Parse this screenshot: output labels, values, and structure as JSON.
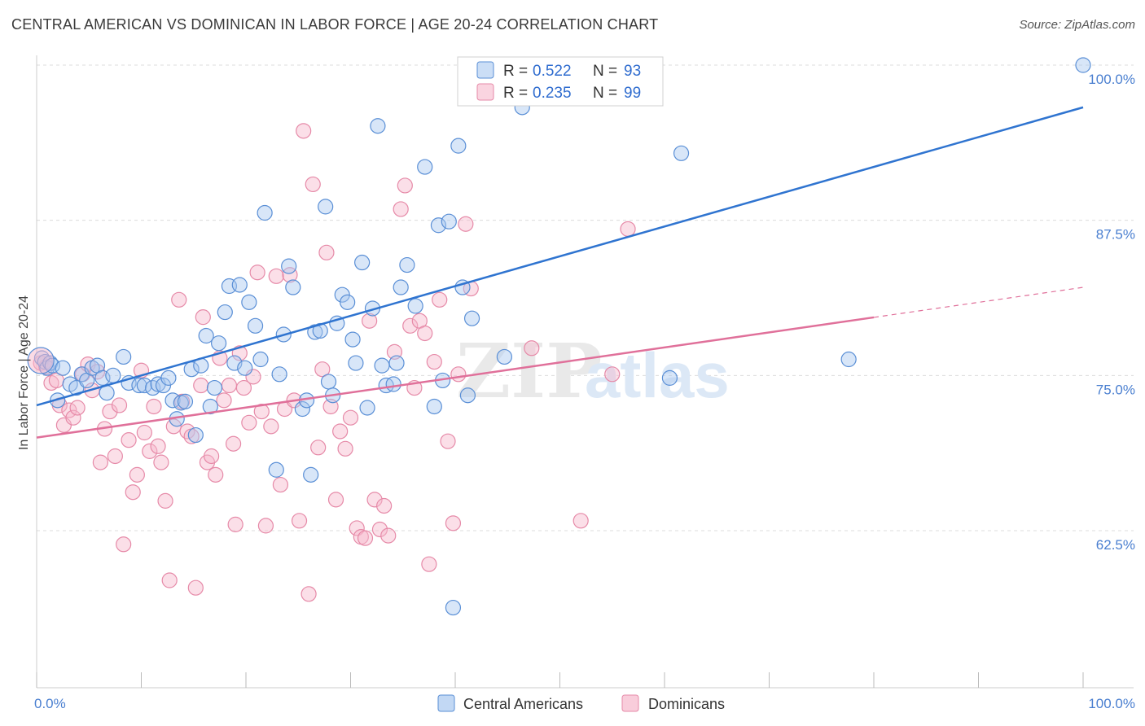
{
  "title": "CENTRAL AMERICAN VS DOMINICAN IN LABOR FORCE | AGE 20-24 CORRELATION CHART",
  "source": "Source: ZipAtlas.com",
  "watermark": {
    "zip": "ZIP",
    "atlas": "atlas"
  },
  "colors": {
    "blue_fill": "#a8c8f0",
    "blue_stroke": "#5a8fd6",
    "blue_line": "#2f74d0",
    "pink_fill": "#f7b8cc",
    "pink_stroke": "#e68aa8",
    "pink_line": "#e0709a",
    "grid": "#dcdcdc",
    "tick_text": "#4a7fd0"
  },
  "legend": {
    "rows": [
      {
        "r_label": "R = ",
        "r_value": "0.522",
        "n_label": "N = ",
        "n_value": "93"
      },
      {
        "r_label": "R = ",
        "r_value": "0.235",
        "n_label": "N = ",
        "n_value": "99"
      }
    ]
  },
  "chart_data": {
    "type": "scatter",
    "title": "CENTRAL AMERICAN VS DOMINICAN IN LABOR FORCE | AGE 20-24 CORRELATION CHART",
    "xlabel": "",
    "ylabel": "In Labor Force | Age 20-24",
    "xlim": [
      0,
      100
    ],
    "ylim": [
      50,
      101
    ],
    "x_tick_labels": [
      "0.0%",
      "100.0%"
    ],
    "y_ticks": [
      62.5,
      75.0,
      87.5,
      100.0
    ],
    "y_tick_labels": [
      "62.5%",
      "75.0%",
      "87.5%",
      "100.0%"
    ],
    "grid": true,
    "legend_position": "top-center",
    "series": [
      {
        "name": "Central Americans",
        "color": "#5a8fd6",
        "trend": {
          "x": [
            0,
            100
          ],
          "y": [
            72.6,
            96.6
          ],
          "dashed_from": null
        },
        "points": [
          [
            0.5,
            76.4
          ],
          [
            0.8,
            76.1
          ],
          [
            1.0,
            75.6
          ],
          [
            1.3,
            76.0
          ],
          [
            1.5,
            75.8
          ],
          [
            2.0,
            73.0
          ],
          [
            2.5,
            75.6
          ],
          [
            3.2,
            74.3
          ],
          [
            3.8,
            74.0
          ],
          [
            4.3,
            75.1
          ],
          [
            4.8,
            74.6
          ],
          [
            5.3,
            75.6
          ],
          [
            5.8,
            75.8
          ],
          [
            6.3,
            74.8
          ],
          [
            6.7,
            73.6
          ],
          [
            7.3,
            75.0
          ],
          [
            8.3,
            76.5
          ],
          [
            8.8,
            74.4
          ],
          [
            9.8,
            74.2
          ],
          [
            10.3,
            74.2
          ],
          [
            11.1,
            74.0
          ],
          [
            11.6,
            74.3
          ],
          [
            12.1,
            74.2
          ],
          [
            12.6,
            74.8
          ],
          [
            13.0,
            73.0
          ],
          [
            13.4,
            71.5
          ],
          [
            13.8,
            72.8
          ],
          [
            14.2,
            72.9
          ],
          [
            14.8,
            75.5
          ],
          [
            15.2,
            70.2
          ],
          [
            15.7,
            75.8
          ],
          [
            16.2,
            78.2
          ],
          [
            16.6,
            72.5
          ],
          [
            17.0,
            74.0
          ],
          [
            17.4,
            77.6
          ],
          [
            18.0,
            80.1
          ],
          [
            18.4,
            82.2
          ],
          [
            18.9,
            76.0
          ],
          [
            19.4,
            82.3
          ],
          [
            19.9,
            75.6
          ],
          [
            20.3,
            80.9
          ],
          [
            20.9,
            79.0
          ],
          [
            21.4,
            76.3
          ],
          [
            21.8,
            88.1
          ],
          [
            22.9,
            67.4
          ],
          [
            23.2,
            75.1
          ],
          [
            23.6,
            78.3
          ],
          [
            24.1,
            83.8
          ],
          [
            24.5,
            82.1
          ],
          [
            25.4,
            72.3
          ],
          [
            25.8,
            73.0
          ],
          [
            26.2,
            67.0
          ],
          [
            26.6,
            78.5
          ],
          [
            27.1,
            78.6
          ],
          [
            27.6,
            88.6
          ],
          [
            27.9,
            74.5
          ],
          [
            28.3,
            73.4
          ],
          [
            28.7,
            79.2
          ],
          [
            29.2,
            81.5
          ],
          [
            29.7,
            80.9
          ],
          [
            30.2,
            77.9
          ],
          [
            30.5,
            76.0
          ],
          [
            31.1,
            84.1
          ],
          [
            31.6,
            72.4
          ],
          [
            32.1,
            80.4
          ],
          [
            32.6,
            95.1
          ],
          [
            33.0,
            75.8
          ],
          [
            33.4,
            74.2
          ],
          [
            34.1,
            74.3
          ],
          [
            34.4,
            76.0
          ],
          [
            34.8,
            82.1
          ],
          [
            35.4,
            83.9
          ],
          [
            36.2,
            80.6
          ],
          [
            37.1,
            91.8
          ],
          [
            38.0,
            72.5
          ],
          [
            38.4,
            87.1
          ],
          [
            38.8,
            74.6
          ],
          [
            39.4,
            87.4
          ],
          [
            39.8,
            56.3
          ],
          [
            40.3,
            93.5
          ],
          [
            40.7,
            82.1
          ],
          [
            41.2,
            73.4
          ],
          [
            41.6,
            79.6
          ],
          [
            42.0,
            97.6
          ],
          [
            43.5,
            100.0
          ],
          [
            44.7,
            76.5
          ],
          [
            46.4,
            96.6
          ],
          [
            56.8,
            100.0
          ],
          [
            57.3,
            100.0
          ],
          [
            60.5,
            74.8
          ],
          [
            61.6,
            92.9
          ],
          [
            77.6,
            76.3
          ],
          [
            100.0,
            100.0
          ]
        ]
      },
      {
        "name": "Dominicans",
        "color": "#e68aa8",
        "trend": {
          "x": [
            0,
            100
          ],
          "y": [
            70.0,
            82.1
          ],
          "dashed_from": 80
        },
        "points": [
          [
            0.4,
            76.0
          ],
          [
            0.9,
            75.7
          ],
          [
            1.4,
            74.4
          ],
          [
            1.9,
            74.6
          ],
          [
            2.2,
            72.6
          ],
          [
            2.6,
            71.0
          ],
          [
            3.1,
            72.2
          ],
          [
            3.5,
            71.6
          ],
          [
            3.9,
            72.4
          ],
          [
            4.4,
            75.1
          ],
          [
            4.9,
            75.9
          ],
          [
            5.3,
            73.8
          ],
          [
            5.8,
            75.3
          ],
          [
            6.1,
            68.0
          ],
          [
            6.5,
            70.7
          ],
          [
            7.0,
            72.1
          ],
          [
            7.5,
            68.5
          ],
          [
            7.9,
            72.6
          ],
          [
            8.3,
            61.4
          ],
          [
            8.8,
            69.8
          ],
          [
            9.2,
            65.6
          ],
          [
            9.6,
            67.0
          ],
          [
            10.0,
            75.4
          ],
          [
            10.3,
            70.4
          ],
          [
            10.8,
            68.9
          ],
          [
            11.2,
            72.5
          ],
          [
            11.6,
            69.3
          ],
          [
            11.9,
            68.0
          ],
          [
            12.3,
            64.9
          ],
          [
            12.7,
            58.5
          ],
          [
            13.1,
            70.9
          ],
          [
            13.6,
            81.1
          ],
          [
            13.9,
            72.9
          ],
          [
            14.4,
            70.5
          ],
          [
            14.8,
            70.1
          ],
          [
            15.2,
            57.9
          ],
          [
            15.7,
            74.2
          ],
          [
            15.9,
            79.7
          ],
          [
            16.3,
            68.0
          ],
          [
            16.7,
            68.5
          ],
          [
            17.1,
            67.0
          ],
          [
            17.5,
            76.4
          ],
          [
            17.9,
            73.0
          ],
          [
            18.4,
            74.2
          ],
          [
            18.8,
            69.5
          ],
          [
            19.0,
            63.0
          ],
          [
            19.4,
            76.8
          ],
          [
            19.8,
            74.0
          ],
          [
            20.3,
            71.2
          ],
          [
            20.7,
            74.9
          ],
          [
            21.1,
            83.3
          ],
          [
            21.5,
            72.1
          ],
          [
            21.9,
            62.9
          ],
          [
            22.4,
            70.9
          ],
          [
            22.9,
            83.0
          ],
          [
            23.3,
            66.2
          ],
          [
            23.7,
            72.3
          ],
          [
            24.2,
            83.1
          ],
          [
            24.6,
            73.0
          ],
          [
            25.1,
            63.3
          ],
          [
            25.5,
            94.7
          ],
          [
            26.0,
            57.4
          ],
          [
            26.4,
            90.4
          ],
          [
            26.9,
            69.2
          ],
          [
            27.3,
            75.5
          ],
          [
            27.7,
            84.9
          ],
          [
            28.1,
            72.5
          ],
          [
            28.6,
            65.0
          ],
          [
            29.0,
            70.5
          ],
          [
            29.5,
            69.1
          ],
          [
            30.0,
            71.6
          ],
          [
            30.6,
            62.7
          ],
          [
            31.0,
            62.0
          ],
          [
            31.4,
            61.9
          ],
          [
            31.8,
            79.4
          ],
          [
            32.3,
            65.0
          ],
          [
            32.8,
            62.6
          ],
          [
            33.2,
            64.5
          ],
          [
            33.6,
            62.1
          ],
          [
            34.2,
            76.9
          ],
          [
            34.8,
            88.4
          ],
          [
            35.2,
            90.3
          ],
          [
            35.7,
            79.0
          ],
          [
            36.1,
            74.0
          ],
          [
            36.6,
            79.4
          ],
          [
            37.1,
            78.4
          ],
          [
            37.5,
            59.8
          ],
          [
            38.0,
            76.1
          ],
          [
            38.5,
            81.1
          ],
          [
            39.3,
            69.7
          ],
          [
            39.8,
            63.1
          ],
          [
            40.3,
            75.1
          ],
          [
            41.0,
            87.2
          ],
          [
            41.5,
            82.0
          ],
          [
            47.3,
            77.2
          ],
          [
            50.7,
            100.0
          ],
          [
            52.0,
            63.3
          ],
          [
            55.0,
            75.1
          ],
          [
            56.5,
            86.8
          ]
        ]
      }
    ]
  }
}
